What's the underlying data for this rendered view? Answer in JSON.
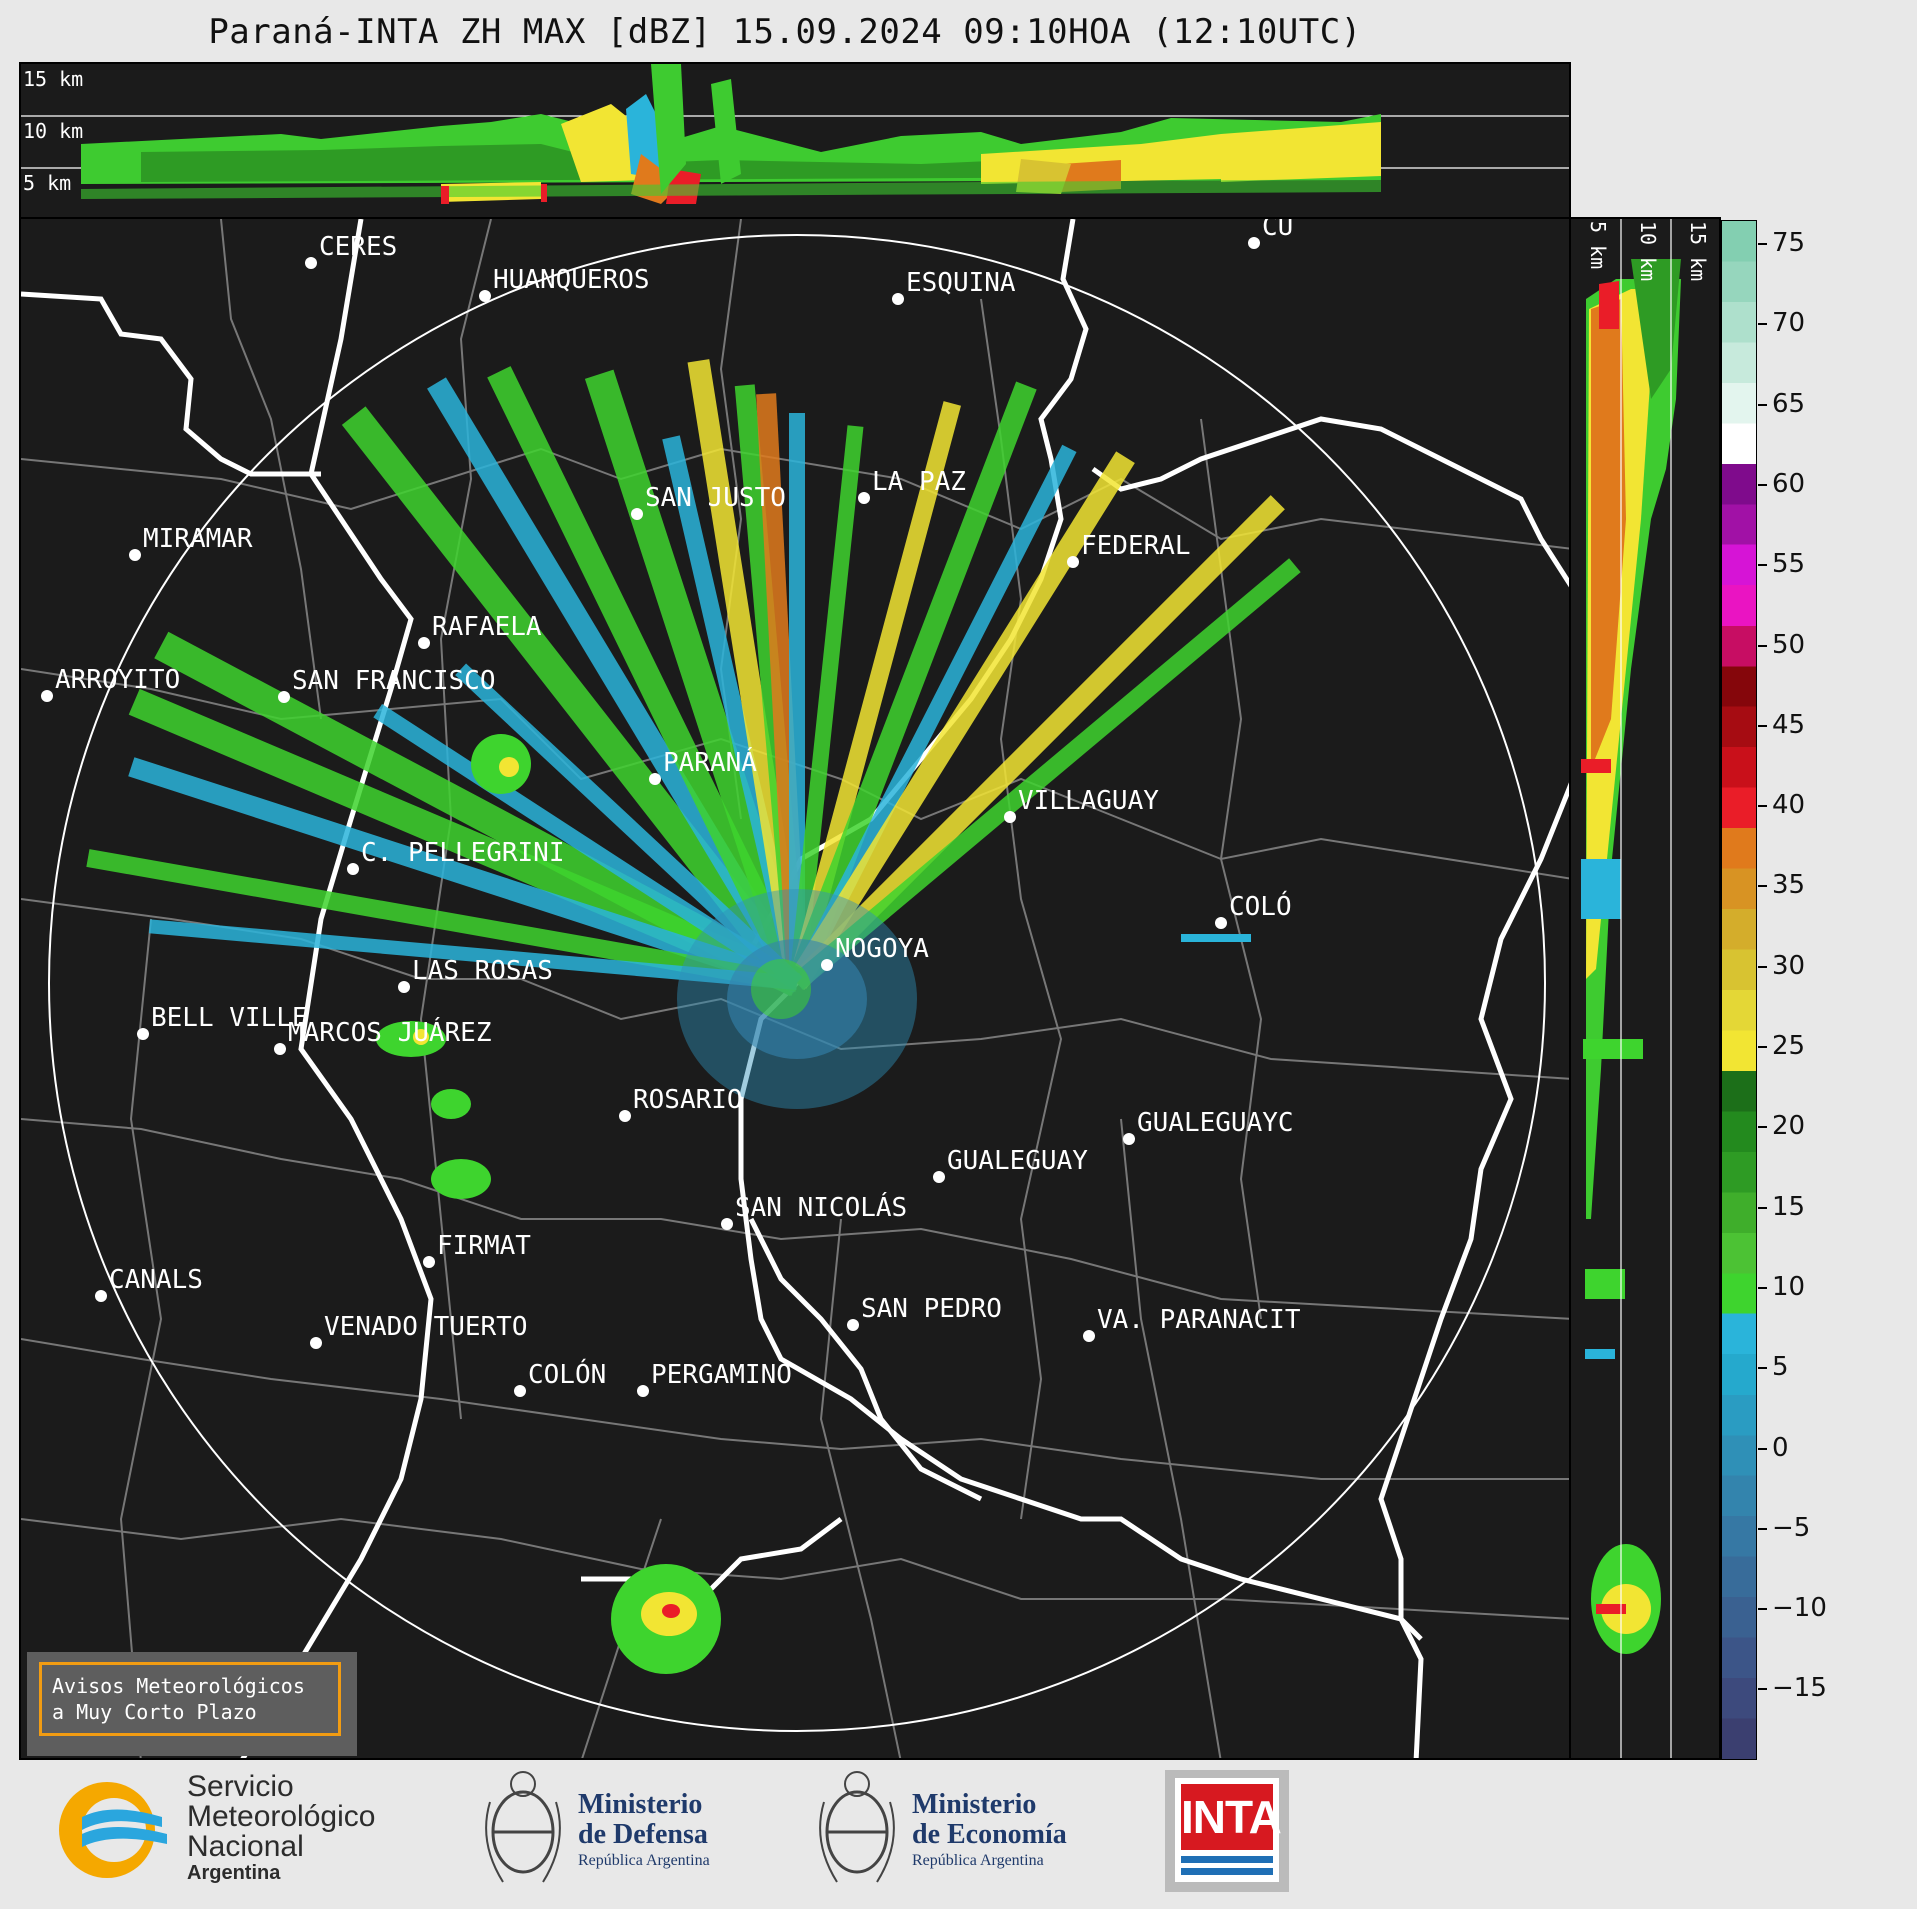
{
  "title": "Paraná-INTA ZH MAX [dBZ] 15.09.2024 09:10HOA (12:10UTC)",
  "top_panel": {
    "height_labels": [
      "15 km",
      "10 km",
      "5 km"
    ]
  },
  "side_panel": {
    "height_labels": [
      "5 km",
      "10 km",
      "15 km"
    ]
  },
  "cities": [
    {
      "name": "CERES"
    },
    {
      "name": "HUANQUEROS"
    },
    {
      "name": "ESQUINA"
    },
    {
      "name": "SAN JUSTO"
    },
    {
      "name": "LA PAZ"
    },
    {
      "name": "MIRAMAR"
    },
    {
      "name": "FEDERAL"
    },
    {
      "name": "RAFAELA"
    },
    {
      "name": "ARROYITO"
    },
    {
      "name": "SAN FRANCISCO"
    },
    {
      "name": "PARANÁ"
    },
    {
      "name": "VILLAGUAY"
    },
    {
      "name": "C. PELLEGRINI"
    },
    {
      "name": "COLÓ"
    },
    {
      "name": "NOGOYA"
    },
    {
      "name": "LAS ROSAS"
    },
    {
      "name": "BELL VILLE"
    },
    {
      "name": "MARCOS JUÁREZ"
    },
    {
      "name": "ROSARIO"
    },
    {
      "name": "GUALEGUAYC"
    },
    {
      "name": "GUALEGUAY"
    },
    {
      "name": "SAN NICOLÁS"
    },
    {
      "name": "FIRMAT"
    },
    {
      "name": "CANALS"
    },
    {
      "name": "SAN PEDRO"
    },
    {
      "name": "VENADO TUERTO"
    },
    {
      "name": "VA. PARANACIT"
    },
    {
      "name": "COLÓN"
    },
    {
      "name": "PERGAMINO"
    },
    {
      "name": "CU"
    }
  ],
  "colorbar": {
    "ticks": [
      "75",
      "70",
      "65",
      "60",
      "55",
      "50",
      "45",
      "40",
      "35",
      "30",
      "25",
      "20",
      "15",
      "10",
      "5",
      "0",
      "−5",
      "−10",
      "−15"
    ],
    "colors": [
      "#3b3f70",
      "#3d4a7d",
      "#3c5588",
      "#3a6191",
      "#386c9a",
      "#3678a4",
      "#3384ad",
      "#2f90b7",
      "#2a9cc2",
      "#25a9cd",
      "#2ab4da",
      "#3ed42e",
      "#4cc234",
      "#3fae2b",
      "#2e9b24",
      "#238a1e",
      "#1c6f19",
      "#f2e533",
      "#e4d736",
      "#d8c331",
      "#d4ad2b",
      "#d89323",
      "#e07a1c",
      "#ea1d28",
      "#c9101a",
      "#a60c12",
      "#85060b",
      "#c70d63",
      "#ea14c2",
      "#d614d6",
      "#a111a6",
      "#7f0b8c",
      "#ffffff",
      "#e3f5ee",
      "#c7eadc",
      "#aee0cc",
      "#96d6bd",
      "#83cfb1"
    ]
  },
  "aviso": {
    "line1": "Avisos Meteorológicos",
    "line2": "a Muy Corto Plazo"
  },
  "logos": {
    "smn": {
      "line1": "Servicio",
      "line2": "Meteorológico",
      "line3": "Nacional",
      "line4": "Argentina"
    },
    "defensa": {
      "line1": "Ministerio",
      "line2": "de Defensa",
      "line3": "República Argentina"
    },
    "economia": {
      "line1": "Ministerio",
      "line2": "de Economía",
      "line3": "República Argentina"
    },
    "inta": {
      "text": "INTA"
    }
  }
}
